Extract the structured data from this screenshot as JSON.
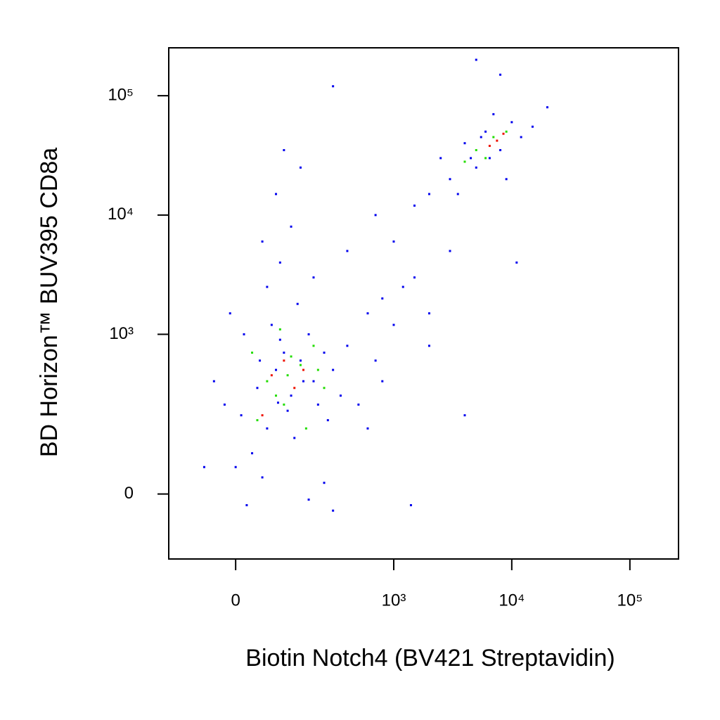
{
  "chart_data": {
    "type": "scatter",
    "xlabel": "Biotin Notch4 (BV421 Streptavidin)",
    "ylabel": "BD Horizon™ BUV395 CD8a",
    "xscale": "biexponential",
    "yscale": "biexponential",
    "xlim": [
      -157,
      258000
    ],
    "ylim": [
      -148,
      252000
    ],
    "xticks": [
      0,
      {
        "value": 1000,
        "label": "10³"
      },
      {
        "value": 10000,
        "label": "10⁴"
      },
      {
        "value": 100000,
        "label": "10⁵"
      }
    ],
    "yticks": [
      0,
      {
        "value": 1000,
        "label": "10³"
      },
      {
        "value": 10000,
        "label": "10⁴"
      },
      {
        "value": 100000,
        "label": "10⁵"
      }
    ],
    "series": [
      {
        "color": "#0000ee",
        "x": [
          10,
          40,
          80,
          120,
          60,
          150,
          30,
          90,
          200,
          250,
          -20,
          0,
          70,
          110,
          180,
          300,
          20,
          50,
          130,
          220,
          100,
          160,
          45,
          85,
          270,
          400,
          350,
          600,
          500,
          800,
          1000,
          1500,
          700,
          2000,
          1200,
          -40,
          15,
          140,
          60,
          90,
          120,
          80,
          150,
          100,
          50,
          200,
          -10,
          400,
          700,
          1000,
          1500,
          2500,
          3000,
          4000,
          5000,
          6000,
          8000,
          10000,
          12000,
          3500,
          7000,
          15000,
          4500,
          9000,
          20000,
          5500,
          2000,
          6500,
          11000,
          3000,
          1400,
          4000,
          300,
          -60,
          180,
          250,
          2000,
          600,
          800,
          5000,
          8000,
          300
        ],
        "y": [
          200,
          350,
          500,
          300,
          150,
          600,
          80,
          900,
          400,
          700,
          250,
          50,
          1200,
          220,
          1000,
          500,
          -20,
          30,
          120,
          250,
          700,
          400,
          600,
          260,
          180,
          800,
          300,
          1500,
          250,
          2000,
          1200,
          3000,
          600,
          800,
          2500,
          400,
          1000,
          1800,
          2500,
          4000,
          8000,
          15000,
          25000,
          35000,
          6000,
          3000,
          1500,
          5000,
          10000,
          6000,
          12000,
          30000,
          20000,
          40000,
          25000,
          50000,
          35000,
          60000,
          45000,
          15000,
          70000,
          55000,
          30000,
          20000,
          80000,
          45000,
          15000,
          30000,
          4000,
          5000,
          -20,
          200,
          -30,
          50,
          -10,
          20,
          1500,
          150,
          400,
          200000,
          150000,
          120000
        ]
      },
      {
        "color": "#22dd00",
        "x": [
          60,
          100,
          150,
          40,
          200,
          120,
          80,
          250,
          30,
          170,
          90,
          220,
          5000,
          7000,
          4000,
          9000,
          6000,
          110
        ],
        "y": [
          400,
          250,
          550,
          180,
          800,
          650,
          300,
          350,
          700,
          150,
          1100,
          500,
          35000,
          45000,
          28000,
          50000,
          30000,
          450
        ]
      },
      {
        "color": "#ee1100",
        "x": [
          70,
          130,
          50,
          100,
          7500,
          8500,
          6500,
          160
        ],
        "y": [
          450,
          350,
          200,
          600,
          42000,
          48000,
          38000,
          500
        ]
      }
    ]
  }
}
